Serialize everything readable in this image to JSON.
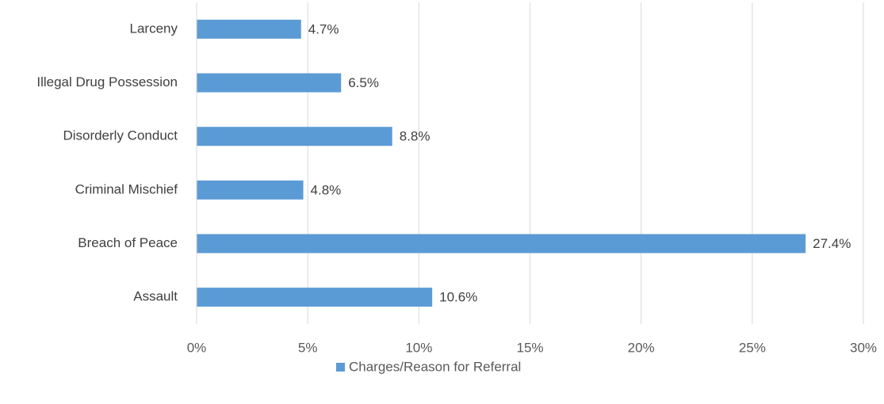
{
  "chart_data": {
    "type": "bar",
    "orientation": "horizontal",
    "categories": [
      "Larceny",
      "Illegal Drug Possession",
      "Disorderly Conduct",
      "Criminal Mischief",
      "Breach of Peace",
      "Assault"
    ],
    "series": [
      {
        "name": "Charges/Reason for Referral",
        "color": "#5b9bd5",
        "values": [
          4.7,
          6.5,
          8.8,
          4.8,
          27.4,
          10.6
        ],
        "value_labels": [
          "4.7%",
          "6.5%",
          "8.8%",
          "4.8%",
          "27.4%",
          "10.6%"
        ]
      }
    ],
    "xlim": [
      0,
      30
    ],
    "xticks": [
      {
        "value": 0,
        "label": "0%"
      },
      {
        "value": 5,
        "label": "5%"
      },
      {
        "value": 10,
        "label": "10%"
      },
      {
        "value": 15,
        "label": "15%"
      },
      {
        "value": 20,
        "label": "20%"
      },
      {
        "value": 25,
        "label": "25%"
      },
      {
        "value": 30,
        "label": "30%"
      }
    ],
    "grid": true,
    "legend": "bottom"
  }
}
